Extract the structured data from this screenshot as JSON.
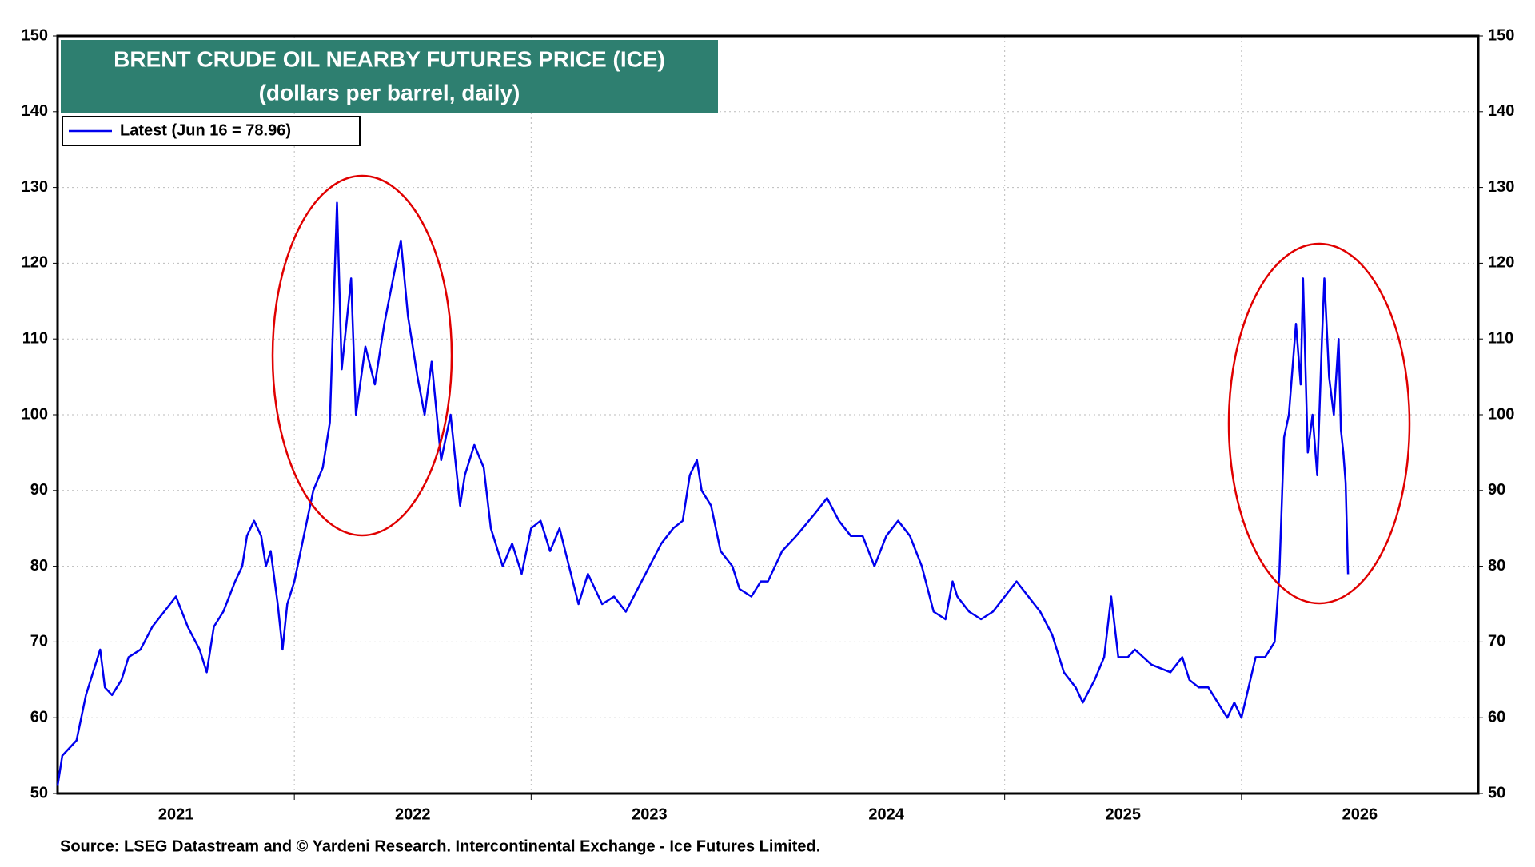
{
  "chart_data": {
    "type": "line",
    "title": "BRENT CRUDE OIL NEARBY FUTURES PRICE (ICE)",
    "subtitle": "(dollars per barrel, daily)",
    "source": "Source: LSEG Datastream and © Yardeni Research. Intercontinental Exchange - Ice Futures Limited.",
    "xlim": [
      2021,
      2027
    ],
    "xticks": [
      {
        "value": 2021.5,
        "label": "2021"
      },
      {
        "value": 2022.5,
        "label": "2022"
      },
      {
        "value": 2023.5,
        "label": "2023"
      },
      {
        "value": 2024.5,
        "label": "2024"
      },
      {
        "value": 2025.5,
        "label": "2025"
      },
      {
        "value": 2026.5,
        "label": "2026"
      }
    ],
    "xgrid": [
      2022,
      2023,
      2024,
      2025,
      2026
    ],
    "ylim": [
      50,
      150
    ],
    "yticks": [
      50,
      60,
      70,
      80,
      90,
      100,
      110,
      120,
      130,
      140,
      150
    ],
    "grid": true,
    "legend": "upper left",
    "series": [
      {
        "name": "Latest (Jun 16 = 78.96)",
        "color": "#0000ee",
        "x": [
          2021.0,
          2021.02,
          2021.05,
          2021.08,
          2021.12,
          2021.15,
          2021.18,
          2021.2,
          2021.23,
          2021.27,
          2021.3,
          2021.35,
          2021.4,
          2021.45,
          2021.5,
          2021.55,
          2021.6,
          2021.63,
          2021.66,
          2021.7,
          2021.75,
          2021.78,
          2021.8,
          2021.83,
          2021.86,
          2021.88,
          2021.9,
          2021.93,
          2021.95,
          2021.97,
          2022.0,
          2022.04,
          2022.08,
          2022.12,
          2022.15,
          2022.18,
          2022.2,
          2022.24,
          2022.26,
          2022.3,
          2022.34,
          2022.38,
          2022.43,
          2022.45,
          2022.48,
          2022.52,
          2022.55,
          2022.58,
          2022.62,
          2022.66,
          2022.7,
          2022.72,
          2022.76,
          2022.8,
          2022.83,
          2022.88,
          2022.92,
          2022.96,
          2023.0,
          2023.04,
          2023.08,
          2023.12,
          2023.2,
          2023.24,
          2023.3,
          2023.35,
          2023.4,
          2023.45,
          2023.5,
          2023.55,
          2023.6,
          2023.64,
          2023.67,
          2023.7,
          2023.72,
          2023.76,
          2023.8,
          2023.85,
          2023.88,
          2023.93,
          2023.97,
          2024.0,
          2024.06,
          2024.12,
          2024.2,
          2024.25,
          2024.3,
          2024.35,
          2024.4,
          2024.45,
          2024.5,
          2024.55,
          2024.6,
          2024.65,
          2024.7,
          2024.75,
          2024.78,
          2024.8,
          2024.85,
          2024.9,
          2024.95,
          2025.0,
          2025.05,
          2025.1,
          2025.15,
          2025.2,
          2025.25,
          2025.3,
          2025.33,
          2025.38,
          2025.42,
          2025.45,
          2025.48,
          2025.52,
          2025.55,
          2025.62,
          2025.7,
          2025.75,
          2025.78,
          2025.82,
          2025.86,
          2025.9,
          2025.94,
          2025.97,
          2026.0,
          2026.03,
          2026.06,
          2026.1,
          2026.14,
          2026.16,
          2026.18,
          2026.2,
          2026.23,
          2026.25,
          2026.26,
          2026.28,
          2026.3,
          2026.32,
          2026.34,
          2026.35,
          2026.37,
          2026.39,
          2026.41,
          2026.42,
          2026.43,
          2026.44,
          2026.445,
          2026.45
        ],
        "values": [
          51,
          55,
          56,
          57,
          63,
          66,
          69,
          64,
          63,
          65,
          68,
          69,
          72,
          74,
          76,
          72,
          69,
          66,
          72,
          74,
          78,
          80,
          84,
          86,
          84,
          80,
          82,
          75,
          69,
          75,
          78,
          84,
          90,
          93,
          99,
          128,
          106,
          118,
          100,
          109,
          104,
          112,
          120,
          123,
          113,
          105,
          100,
          107,
          94,
          100,
          88,
          92,
          96,
          93,
          85,
          80,
          83,
          79,
          85,
          86,
          82,
          85,
          75,
          79,
          75,
          76,
          74,
          77,
          80,
          83,
          85,
          86,
          92,
          94,
          90,
          88,
          82,
          80,
          77,
          76,
          78,
          78,
          82,
          84,
          87,
          89,
          86,
          84,
          84,
          80,
          84,
          86,
          84,
          80,
          74,
          73,
          78,
          76,
          74,
          73,
          74,
          76,
          78,
          76,
          74,
          71,
          66,
          64,
          62,
          65,
          68,
          76,
          68,
          68,
          69,
          67,
          66,
          68,
          65,
          64,
          64,
          62,
          60,
          62,
          60,
          64,
          68,
          68,
          70,
          79,
          97,
          100,
          112,
          104,
          118,
          95,
          100,
          92,
          110,
          118,
          105,
          100,
          110,
          98,
          95,
          91,
          85,
          78.96
        ]
      }
    ]
  }
}
